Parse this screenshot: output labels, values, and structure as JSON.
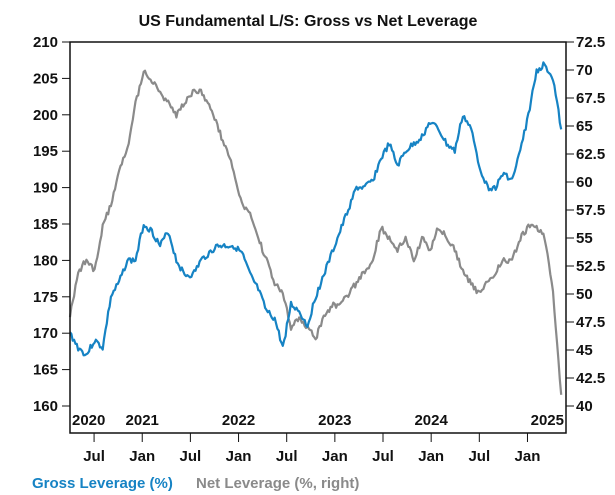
{
  "chart_data": {
    "type": "line",
    "title": "US Fundamental L/S: Gross vs Net Leverage",
    "colors": {
      "gross": "#1683c4",
      "net": "#8a8a8a"
    },
    "x_start": 2020.25,
    "x_end": 2025.4,
    "left_axis": {
      "ylim": [
        160,
        210
      ],
      "ticks": [
        "160",
        "165",
        "170",
        "175",
        "180",
        "185",
        "190",
        "195",
        "200",
        "205",
        "210"
      ]
    },
    "right_axis": {
      "ylim": [
        40,
        72.5
      ],
      "ticks": [
        "40",
        "42.5",
        "45",
        "47.5",
        "50",
        "52.5",
        "55",
        "57.5",
        "60",
        "62.5",
        "65",
        "67.5",
        "70",
        "72.5"
      ]
    },
    "year_labels": [
      {
        "label": "2020",
        "x": 2020.3
      },
      {
        "label": "2021",
        "x": 2021.0
      },
      {
        "label": "2022",
        "x": 2022.0
      },
      {
        "label": "2023",
        "x": 2023.0
      },
      {
        "label": "2024",
        "x": 2024.0
      },
      {
        "label": "2025",
        "x": 2025.0
      }
    ],
    "month_ticks": [
      {
        "label": "Jul",
        "x": 2020.5
      },
      {
        "label": "Jan",
        "x": 2021.0
      },
      {
        "label": "Jul",
        "x": 2021.5
      },
      {
        "label": "Jan",
        "x": 2022.0
      },
      {
        "label": "Jul",
        "x": 2022.5
      },
      {
        "label": "Jan",
        "x": 2023.0
      },
      {
        "label": "Jul",
        "x": 2023.5
      },
      {
        "label": "Jan",
        "x": 2024.0
      },
      {
        "label": "Jul",
        "x": 2024.5
      },
      {
        "label": "Jan",
        "x": 2025.0
      }
    ],
    "legend": [
      "Gross Leverage (%)",
      "Net Leverage (%, right)"
    ],
    "series": [
      {
        "name": "Gross Leverage (%)",
        "axis": "left",
        "values": [
          170,
          168,
          167,
          169,
          168,
          175,
          177,
          180,
          180,
          185,
          184,
          182,
          184,
          180,
          178,
          178,
          180,
          181,
          182,
          182,
          182,
          181,
          178,
          176,
          173,
          172,
          168,
          174,
          173,
          171,
          175,
          178,
          181,
          184,
          187,
          190,
          190,
          191,
          194,
          196,
          193,
          195,
          196,
          197,
          199,
          198,
          196,
          195,
          200,
          198,
          193,
          190,
          190,
          192,
          191,
          195,
          200,
          206,
          207,
          205,
          198
        ]
      },
      {
        "name": "Net Leverage (%, right)",
        "axis": "right",
        "values": [
          48,
          52,
          53,
          52,
          56,
          58,
          61,
          63,
          67,
          70,
          69,
          68,
          67,
          66,
          67,
          68,
          68,
          67,
          65,
          63,
          61,
          58,
          57,
          55,
          53,
          51,
          50,
          47,
          48,
          47,
          46,
          48,
          49,
          49,
          50,
          51,
          52,
          53,
          56,
          55,
          54,
          55,
          53,
          55,
          54,
          56,
          55,
          54,
          52,
          51,
          50,
          51,
          52,
          53,
          53,
          55,
          56,
          56,
          55,
          50,
          41
        ]
      }
    ]
  }
}
